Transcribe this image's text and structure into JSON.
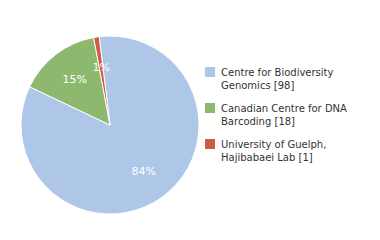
{
  "chart_data": {
    "type": "pie",
    "categories": [
      "Centre for Biodiversity\nGenomics [98]",
      "Canadian Centre for DNA\nBarcoding [18]",
      "University of Guelph,\nHajibabaei Lab [1]"
    ],
    "values": [
      84,
      15,
      1
    ],
    "value_labels": [
      "84%",
      "15%",
      "1%"
    ],
    "colors": [
      "#aec6e8",
      "#8db96e",
      "#cd5b45"
    ],
    "data_labels": true,
    "legend": "right"
  }
}
